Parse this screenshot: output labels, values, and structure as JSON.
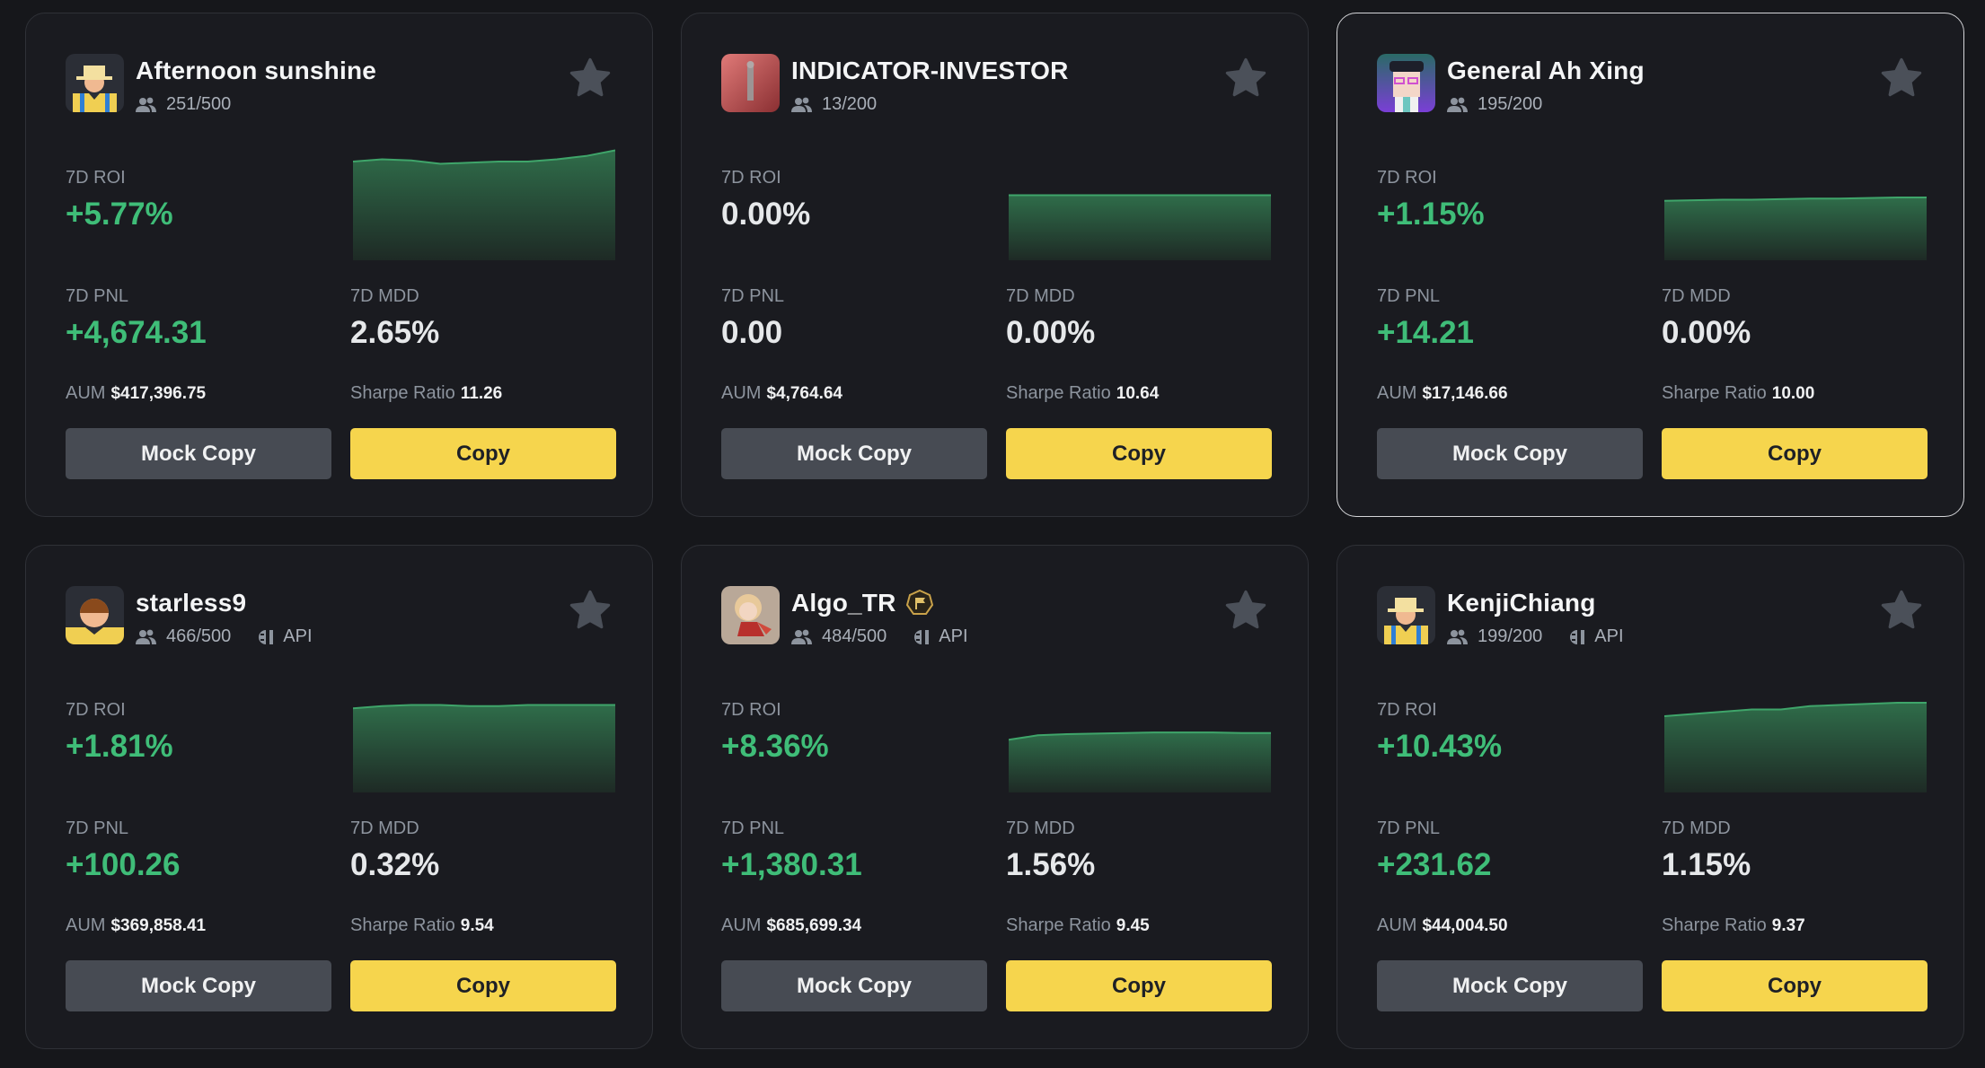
{
  "colors": {
    "background": "#16171b",
    "card": "#1a1b20",
    "positive": "#3fbd78",
    "copy_button": "#f6d54d",
    "mock_button": "#474b53",
    "chart_fill": "#2e6a48"
  },
  "labels": {
    "roi": "7D ROI",
    "pnl": "7D PNL",
    "mdd": "7D MDD",
    "aum": "AUM",
    "sharpe": "Sharpe Ratio",
    "mock_copy": "Mock Copy",
    "copy": "Copy",
    "api": "API"
  },
  "cards": [
    {
      "name": "Afternoon sunshine",
      "avatar": "farmer-hat-avatar",
      "followers": "251/500",
      "api": false,
      "badge": false,
      "favorite": false,
      "roi": "+5.77%",
      "roi_positive": true,
      "pnl": "+4,674.31",
      "pnl_positive": true,
      "mdd": "2.65%",
      "aum": "$417,396.75",
      "sharpe": "11.26",
      "sparkline": [
        0.88,
        0.9,
        0.89,
        0.86,
        0.87,
        0.88,
        0.88,
        0.9,
        0.93,
        0.98
      ],
      "active": false
    },
    {
      "name": "INDICATOR-INVESTOR",
      "avatar": "photo-figure-avatar",
      "followers": "13/200",
      "api": false,
      "badge": false,
      "favorite": false,
      "roi": "0.00%",
      "roi_positive": false,
      "pnl": "0.00",
      "pnl_positive": false,
      "mdd": "0.00%",
      "aum": "$4,764.64",
      "sharpe": "10.64",
      "sparkline": [
        0.58,
        0.58,
        0.58,
        0.58,
        0.58,
        0.58,
        0.58,
        0.58,
        0.58,
        0.58
      ],
      "active": false
    },
    {
      "name": "General Ah Xing",
      "avatar": "general-avatar",
      "followers": "195/200",
      "api": false,
      "badge": false,
      "favorite": false,
      "roi": "+1.15%",
      "roi_positive": true,
      "pnl": "+14.21",
      "pnl_positive": true,
      "mdd": "0.00%",
      "aum": "$17,146.66",
      "sharpe": "10.00",
      "sparkline": [
        0.53,
        0.535,
        0.54,
        0.54,
        0.545,
        0.55,
        0.55,
        0.555,
        0.56,
        0.56
      ],
      "active": true
    },
    {
      "name": "starless9",
      "avatar": "boy-avatar",
      "followers": "466/500",
      "api": true,
      "badge": false,
      "favorite": false,
      "roi": "+1.81%",
      "roi_positive": true,
      "pnl": "+100.26",
      "pnl_positive": true,
      "mdd": "0.32%",
      "aum": "$369,858.41",
      "sharpe": "9.54",
      "sparkline": [
        0.75,
        0.77,
        0.78,
        0.78,
        0.77,
        0.77,
        0.78,
        0.78,
        0.78,
        0.78
      ],
      "active": false
    },
    {
      "name": "Algo_TR",
      "avatar": "girl-photo-avatar",
      "followers": "484/500",
      "api": true,
      "badge": true,
      "favorite": false,
      "roi": "+8.36%",
      "roi_positive": true,
      "pnl": "+1,380.31",
      "pnl_positive": true,
      "mdd": "1.56%",
      "aum": "$685,699.34",
      "sharpe": "9.45",
      "sparkline": [
        0.47,
        0.51,
        0.52,
        0.525,
        0.53,
        0.535,
        0.535,
        0.535,
        0.53,
        0.53
      ],
      "active": false
    },
    {
      "name": "KenjiChiang",
      "avatar": "farmer-hat-avatar",
      "followers": "199/200",
      "api": true,
      "badge": false,
      "favorite": false,
      "roi": "+10.43%",
      "roi_positive": true,
      "pnl": "+231.62",
      "pnl_positive": true,
      "mdd": "1.15%",
      "aum": "$44,004.50",
      "sharpe": "9.37",
      "sparkline": [
        0.68,
        0.7,
        0.72,
        0.74,
        0.74,
        0.77,
        0.78,
        0.79,
        0.8,
        0.8
      ],
      "active": false
    }
  ]
}
